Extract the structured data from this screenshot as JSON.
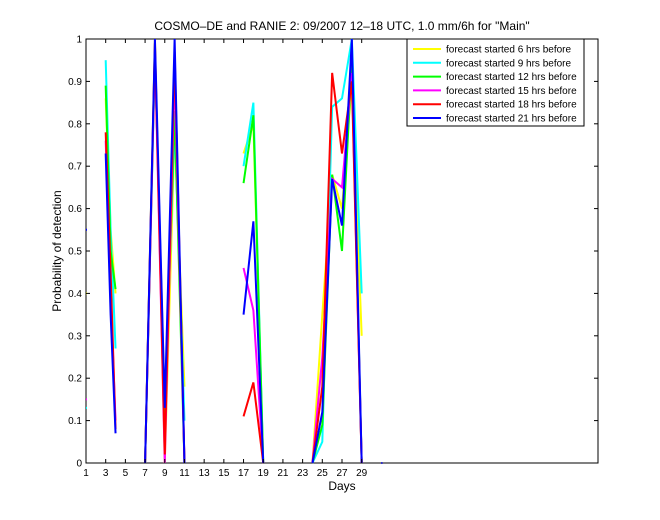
{
  "chart_data": {
    "type": "line",
    "title": "COSMO–DE and RANIE 2: 09/2007 12–18 UTC, 1.0 mm/6h for \"Main\"",
    "xlabel": "Days",
    "ylabel": "Probability of detection",
    "xlim": [
      1,
      53
    ],
    "ylim": [
      0,
      1
    ],
    "x_ticks": [
      1,
      3,
      5,
      7,
      9,
      11,
      13,
      15,
      17,
      19,
      21,
      23,
      25,
      27,
      29
    ],
    "y_ticks": [
      0,
      0.1,
      0.2,
      0.3,
      0.4,
      0.5,
      0.6,
      0.7,
      0.8,
      0.9,
      1
    ],
    "y_tick_labels": [
      "0",
      "0.1",
      "0.2",
      "0.3",
      "0.4",
      "0.5",
      "0.6",
      "0.7",
      "0.8",
      "0.9",
      "1"
    ],
    "grid": false,
    "legend_position": "top-right",
    "series": [
      {
        "name": "forecast started 6 hrs before",
        "color": "#ffff00",
        "segments": [
          [
            [
              1,
              0.4
            ]
          ],
          [
            [
              3,
              0.86
            ],
            [
              3.5,
              0.55
            ],
            [
              4,
              0.4
            ]
          ],
          [
            [
              7,
              0
            ],
            [
              8,
              1
            ],
            [
              9,
              0
            ],
            [
              10,
              0.78
            ],
            [
              11,
              0.18
            ]
          ],
          [
            [
              17,
              0.73
            ],
            [
              18,
              0.8
            ],
            [
              19,
              0
            ]
          ],
          [
            [
              24,
              0
            ],
            [
              25,
              0.35
            ],
            [
              26,
              0.68
            ],
            [
              27,
              0.6
            ],
            [
              28,
              0.9
            ],
            [
              29,
              0.3
            ]
          ]
        ]
      },
      {
        "name": "forecast started 9 hrs before",
        "color": "#00ffff",
        "segments": [
          [
            [
              1,
              0.13
            ]
          ],
          [
            [
              3,
              0.95
            ],
            [
              3.5,
              0.55
            ],
            [
              4,
              0.27
            ]
          ],
          [
            [
              7,
              0
            ],
            [
              8,
              0.96
            ],
            [
              9,
              0.13
            ],
            [
              10,
              0.8
            ],
            [
              11,
              0.1
            ]
          ],
          [
            [
              17,
              0.7
            ],
            [
              18,
              0.85
            ],
            [
              19,
              0
            ]
          ],
          [
            [
              24,
              0
            ],
            [
              25,
              0.05
            ],
            [
              26,
              0.84
            ],
            [
              27,
              0.86
            ],
            [
              28,
              1
            ],
            [
              29,
              0.4
            ]
          ]
        ]
      },
      {
        "name": "forecast started 12 hrs before",
        "color": "#00ff00",
        "segments": [
          [
            [
              3,
              0.89
            ],
            [
              3.5,
              0.5
            ],
            [
              4,
              0.41
            ]
          ],
          [
            [
              7,
              0
            ],
            [
              8,
              0.97
            ],
            [
              9,
              0.1
            ],
            [
              10,
              0.83
            ],
            [
              11,
              0
            ]
          ],
          [
            [
              17,
              0.66
            ],
            [
              18,
              0.82
            ],
            [
              19,
              0
            ]
          ],
          [
            [
              24,
              0
            ],
            [
              25,
              0.09
            ],
            [
              26,
              0.68
            ],
            [
              27,
              0.5
            ],
            [
              28,
              0.95
            ],
            [
              29,
              0
            ]
          ]
        ]
      },
      {
        "name": "forecast started 15 hrs before",
        "color": "#ff00ff",
        "segments": [
          [
            [
              1,
              0.15
            ]
          ],
          [
            [
              3,
              0.76
            ],
            [
              3.5,
              0.4
            ],
            [
              4,
              0.1
            ]
          ],
          [
            [
              7,
              0
            ],
            [
              8,
              0.97
            ],
            [
              9,
              0
            ],
            [
              10,
              0.93
            ],
            [
              11,
              0
            ]
          ],
          [
            [
              17,
              0.46
            ],
            [
              18,
              0.36
            ],
            [
              19,
              0
            ]
          ],
          [
            [
              24,
              0
            ],
            [
              25,
              0.25
            ],
            [
              26,
              0.67
            ],
            [
              27,
              0.65
            ],
            [
              28,
              0.92
            ],
            [
              29,
              0
            ]
          ]
        ]
      },
      {
        "name": "forecast started 18 hrs before",
        "color": "#ff0000",
        "segments": [
          [
            [
              3,
              0.78
            ],
            [
              3.5,
              0.45
            ],
            [
              4,
              0.08
            ]
          ],
          [
            [
              7,
              0
            ],
            [
              8,
              0.99
            ],
            [
              9,
              0.02
            ],
            [
              10,
              0.97
            ],
            [
              11,
              0
            ]
          ],
          [
            [
              17,
              0.11
            ],
            [
              18,
              0.19
            ],
            [
              19,
              0
            ]
          ],
          [
            [
              24,
              0
            ],
            [
              25,
              0.18
            ],
            [
              26,
              0.92
            ],
            [
              27,
              0.73
            ],
            [
              28,
              0.9
            ],
            [
              29,
              0
            ]
          ]
        ]
      },
      {
        "name": "forecast started 21 hrs before",
        "color": "#0000ff",
        "segments": [
          [
            [
              1,
              0.55
            ]
          ],
          [
            [
              3,
              0.73
            ],
            [
              3.5,
              0.35
            ],
            [
              4,
              0.07
            ]
          ],
          [
            [
              7,
              0
            ],
            [
              8,
              1
            ],
            [
              9,
              0.13
            ],
            [
              10,
              1
            ],
            [
              11,
              0
            ]
          ],
          [
            [
              17,
              0.35
            ],
            [
              18,
              0.57
            ],
            [
              19,
              0
            ]
          ],
          [
            [
              24,
              0
            ],
            [
              25,
              0.12
            ],
            [
              26,
              0.67
            ],
            [
              27,
              0.56
            ],
            [
              28,
              1
            ],
            [
              29,
              0
            ]
          ],
          [
            [
              31,
              0
            ]
          ]
        ]
      }
    ]
  }
}
